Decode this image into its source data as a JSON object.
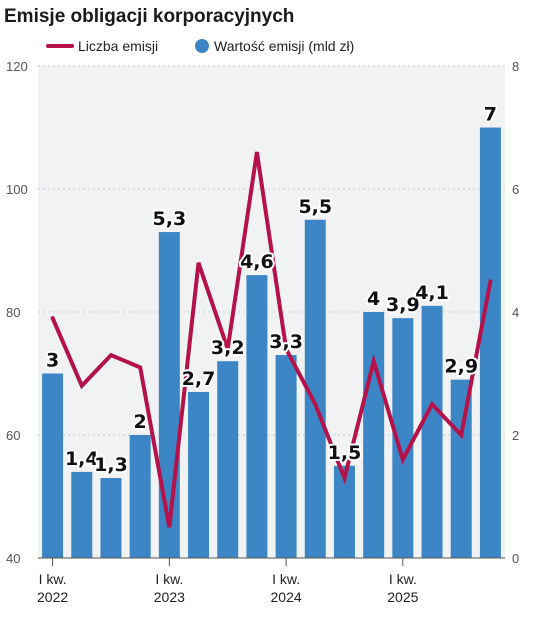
{
  "chart_data": {
    "type": "bar",
    "title": "Emisje obligacji korporacyjnych",
    "legend": [
      {
        "name": "Liczba emisji",
        "kind": "line",
        "color": "#b5124a"
      },
      {
        "name": "Wartość emisji (mld zł)",
        "kind": "bar",
        "color": "#3d86c6"
      }
    ],
    "legend_position": "top",
    "grid": true,
    "y_left": {
      "min": 40,
      "max": 120,
      "ticks": [
        "40",
        "60",
        "80",
        "100",
        "120"
      ]
    },
    "y_right": {
      "min": 0,
      "max": 8,
      "ticks": [
        "0",
        "2",
        "4",
        "6",
        "8"
      ]
    },
    "x_tick_labels": [
      {
        "index": 0,
        "line1": "I kw.",
        "line2": "2022"
      },
      {
        "index": 4,
        "line1": "I kw.",
        "line2": "2023"
      },
      {
        "index": 8,
        "line1": "I kw.",
        "line2": "2024"
      },
      {
        "index": 12,
        "line1": "I kw.",
        "line2": "2025"
      }
    ],
    "series": [
      {
        "name": "Wartość emisji (mld zł)",
        "type": "bar",
        "axis": "right",
        "color": "#3d86c6",
        "values": [
          3,
          1.4,
          1.3,
          2,
          5.3,
          2.7,
          3.2,
          4.6,
          3.3,
          5.5,
          1.5,
          4,
          3.9,
          4.1,
          2.9,
          7
        ],
        "labels": [
          "3",
          "1,4",
          "1,3",
          "2",
          "5,3",
          "2,7",
          "3,2",
          "4,6",
          "3,3",
          "5,5",
          "1,5",
          "4",
          "3,9",
          "4,1",
          "2,9",
          "7"
        ]
      },
      {
        "name": "Liczba emisji",
        "type": "line",
        "axis": "left",
        "color": "#b5124a",
        "values": [
          79,
          68,
          73,
          71,
          45,
          88,
          74,
          106,
          74,
          65,
          53,
          72,
          56,
          65,
          60,
          85
        ]
      }
    ]
  }
}
